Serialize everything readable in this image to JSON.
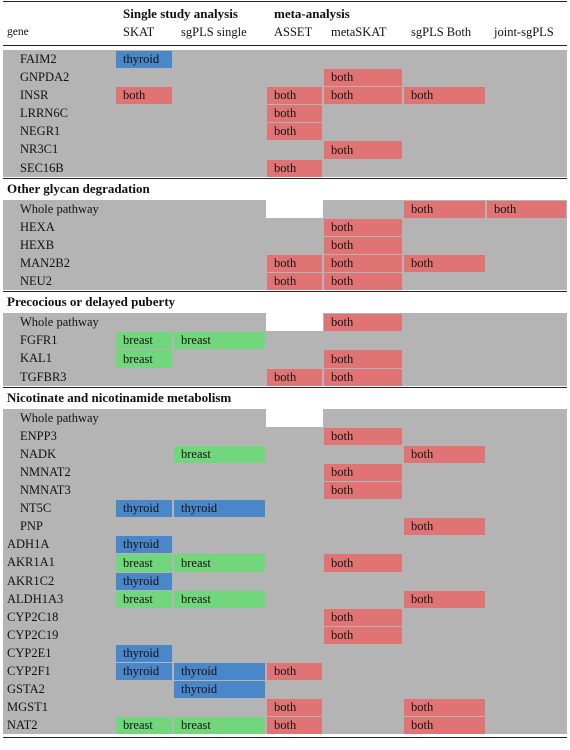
{
  "header": {
    "groups": [
      "Single study analysis",
      "meta-analysis"
    ],
    "gene": "gene",
    "columns": [
      "SKAT",
      "sgPLS single",
      "ASSET",
      "metaSKAT",
      "sgPLS Both",
      "joint-sgPLS"
    ]
  },
  "colors": {
    "thyroid": "#4a87c9",
    "breast": "#72d77c",
    "both": "#e07474",
    "empty": "#b4b4b4",
    "blank": "#ffffff"
  },
  "rows": [
    {
      "gene": "FAIM2",
      "indent": true,
      "cells": [
        "thyroid",
        null,
        null,
        null,
        null,
        null
      ]
    },
    {
      "gene": "GNPDA2",
      "indent": true,
      "cells": [
        null,
        null,
        null,
        "both",
        null,
        null
      ]
    },
    {
      "gene": "INSR",
      "indent": true,
      "cells": [
        "both",
        null,
        "both",
        "both",
        "both",
        null
      ]
    },
    {
      "gene": "LRRN6C",
      "indent": true,
      "cells": [
        null,
        null,
        "both",
        null,
        null,
        null
      ]
    },
    {
      "gene": "NEGR1",
      "indent": true,
      "cells": [
        null,
        null,
        "both",
        null,
        null,
        null
      ]
    },
    {
      "gene": "NR3C1",
      "indent": true,
      "cells": [
        null,
        null,
        null,
        "both",
        null,
        null
      ]
    },
    {
      "gene": "SEC16B",
      "indent": true,
      "cells": [
        null,
        null,
        "both",
        null,
        null,
        null
      ]
    },
    {
      "section": "Other glycan degradation"
    },
    {
      "gene": "Whole pathway",
      "indent": true,
      "blank": [
        2
      ],
      "cells": [
        null,
        null,
        null,
        null,
        "both",
        "both"
      ]
    },
    {
      "gene": "HEXA",
      "indent": true,
      "cells": [
        null,
        null,
        null,
        "both",
        null,
        null
      ]
    },
    {
      "gene": "HEXB",
      "indent": true,
      "cells": [
        null,
        null,
        null,
        "both",
        null,
        null
      ]
    },
    {
      "gene": "MAN2B2",
      "indent": true,
      "cells": [
        null,
        null,
        "both",
        "both",
        "both",
        null
      ]
    },
    {
      "gene": "NEU2",
      "indent": true,
      "cells": [
        null,
        null,
        "both",
        "both",
        null,
        null
      ]
    },
    {
      "section": "Precocious or delayed puberty"
    },
    {
      "gene": "Whole pathway",
      "indent": true,
      "blank": [
        2
      ],
      "cells": [
        null,
        null,
        null,
        "both",
        null,
        null
      ]
    },
    {
      "gene": "FGFR1",
      "indent": true,
      "cells": [
        "breast",
        "breast",
        null,
        null,
        null,
        null
      ]
    },
    {
      "gene": "KAL1",
      "indent": true,
      "cells": [
        "breast",
        null,
        null,
        "both",
        null,
        null
      ]
    },
    {
      "gene": "TGFBR3",
      "indent": true,
      "cells": [
        null,
        null,
        "both",
        "both",
        null,
        null
      ]
    },
    {
      "section": "Nicotinate and nicotinamide metabolism"
    },
    {
      "gene": "Whole pathway",
      "indent": true,
      "blank": [
        2
      ],
      "cells": [
        null,
        null,
        null,
        null,
        null,
        null
      ]
    },
    {
      "gene": "ENPP3",
      "indent": true,
      "cells": [
        null,
        null,
        null,
        "both",
        null,
        null
      ]
    },
    {
      "gene": "NADK",
      "indent": true,
      "cells": [
        null,
        "breast",
        null,
        null,
        "both",
        null
      ]
    },
    {
      "gene": "NMNAT2",
      "indent": true,
      "cells": [
        null,
        null,
        null,
        "both",
        null,
        null
      ]
    },
    {
      "gene": "NMNAT3",
      "indent": true,
      "cells": [
        null,
        null,
        null,
        "both",
        null,
        null
      ]
    },
    {
      "gene": "NT5C",
      "indent": true,
      "cells": [
        "thyroid",
        "thyroid",
        null,
        null,
        null,
        null
      ]
    },
    {
      "gene": "PNP",
      "indent": true,
      "cells": [
        null,
        null,
        null,
        null,
        "both",
        null
      ]
    },
    {
      "gene": "ADH1A",
      "indent": false,
      "cells": [
        "thyroid",
        null,
        null,
        null,
        null,
        null
      ]
    },
    {
      "gene": "AKR1A1",
      "indent": false,
      "cells": [
        "breast",
        "breast",
        null,
        "both",
        null,
        null
      ]
    },
    {
      "gene": "AKR1C2",
      "indent": false,
      "cells": [
        "thyroid",
        null,
        null,
        null,
        null,
        null
      ]
    },
    {
      "gene": "ALDH1A3",
      "indent": false,
      "cells": [
        "breast",
        "breast",
        null,
        null,
        "both",
        null
      ]
    },
    {
      "gene": "CYP2C18",
      "indent": false,
      "cells": [
        null,
        null,
        null,
        "both",
        null,
        null
      ]
    },
    {
      "gene": "CYP2C19",
      "indent": false,
      "cells": [
        null,
        null,
        null,
        "both",
        null,
        null
      ]
    },
    {
      "gene": "CYP2E1",
      "indent": false,
      "cells": [
        "thyroid",
        null,
        null,
        null,
        null,
        null
      ]
    },
    {
      "gene": "CYP2F1",
      "indent": false,
      "cells": [
        "thyroid",
        "thyroid",
        "both",
        null,
        null,
        null
      ]
    },
    {
      "gene": "GSTA2",
      "indent": false,
      "cells": [
        null,
        "thyroid",
        null,
        null,
        null,
        null
      ]
    },
    {
      "gene": "MGST1",
      "indent": false,
      "cells": [
        null,
        null,
        "both",
        null,
        "both",
        null
      ]
    },
    {
      "gene": "NAT2",
      "indent": false,
      "cells": [
        "breast",
        "breast",
        "both",
        null,
        "both",
        null
      ]
    }
  ]
}
